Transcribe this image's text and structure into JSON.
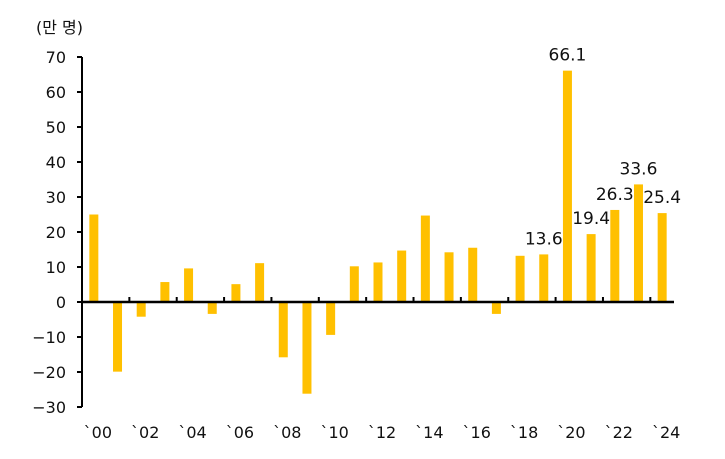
{
  "chart_data": {
    "type": "bar",
    "title": "",
    "ylabel": "(만 명)",
    "xlabel": "",
    "ylim": [
      -30,
      70
    ],
    "yticks": [
      -30,
      -20,
      -10,
      0,
      10,
      20,
      30,
      40,
      50,
      60,
      70
    ],
    "ytick_labels": [
      "−30",
      "−20",
      "−10",
      "0",
      "10",
      "20",
      "30",
      "40",
      "50",
      "60",
      "70"
    ],
    "categories": [
      "2000",
      "2001",
      "2002",
      "2003",
      "2004",
      "2005",
      "2006",
      "2007",
      "2008",
      "2009",
      "2010",
      "2011",
      "2012",
      "2013",
      "2014",
      "2015",
      "2016",
      "2017",
      "2018",
      "2019",
      "2020",
      "2021",
      "2022",
      "2023",
      "2024"
    ],
    "xtick_labels": [
      "`00",
      "`02",
      "`04",
      "`06",
      "`08",
      "`10",
      "`12",
      "`14",
      "`16",
      "`18",
      "`20",
      "`22",
      "`24"
    ],
    "values": [
      25.0,
      -19.9,
      -4.2,
      5.7,
      9.6,
      -3.4,
      5.1,
      11.1,
      -15.8,
      -26.2,
      -9.4,
      10.2,
      11.3,
      14.7,
      24.7,
      14.2,
      15.5,
      -3.4,
      13.2,
      13.6,
      66.1,
      19.4,
      26.3,
      33.6,
      25.4
    ],
    "data_labels": [
      {
        "category": "2019",
        "text": "13.6"
      },
      {
        "category": "2020",
        "text": "66.1"
      },
      {
        "category": "2021",
        "text": "19.4"
      },
      {
        "category": "2022",
        "text": "26.3"
      },
      {
        "category": "2023",
        "text": "33.6"
      },
      {
        "category": "2024",
        "text": "25.4"
      }
    ],
    "bar_color": "#FFC000",
    "grid": false,
    "legend": "none"
  }
}
